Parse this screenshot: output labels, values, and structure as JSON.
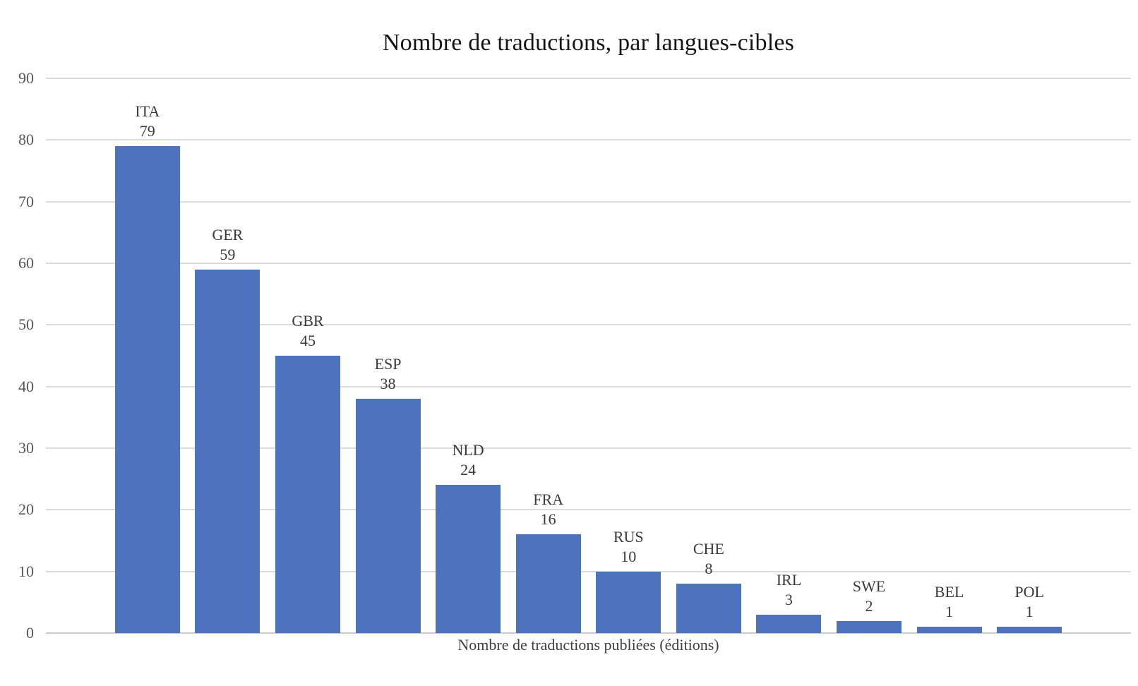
{
  "chart_data": {
    "type": "bar",
    "title": "Nombre de traductions, par langues-cibles",
    "xlabel": "Nombre de traductions publiées (éditions)",
    "ylabel": "",
    "categories": [
      "ITA",
      "GER",
      "GBR",
      "ESP",
      "NLD",
      "FRA",
      "RUS",
      "CHE",
      "IRL",
      "SWE",
      "BEL",
      "POL"
    ],
    "values": [
      79,
      59,
      45,
      38,
      24,
      16,
      10,
      8,
      3,
      2,
      1,
      1
    ],
    "ylim": [
      0,
      90
    ],
    "ytick_step": 10,
    "ytick_labels": [
      "0",
      "10",
      "20",
      "30",
      "40",
      "50",
      "60",
      "70",
      "80",
      "90"
    ],
    "grid": true,
    "legend": false,
    "colors": {
      "bar": "#4d72be",
      "gridline": "#dcdcdc",
      "axis_line": "#c9c9c9",
      "data_label": "#3a3a3a",
      "tick_label": "#555555",
      "title": "#141414",
      "background": "#ffffff"
    }
  }
}
